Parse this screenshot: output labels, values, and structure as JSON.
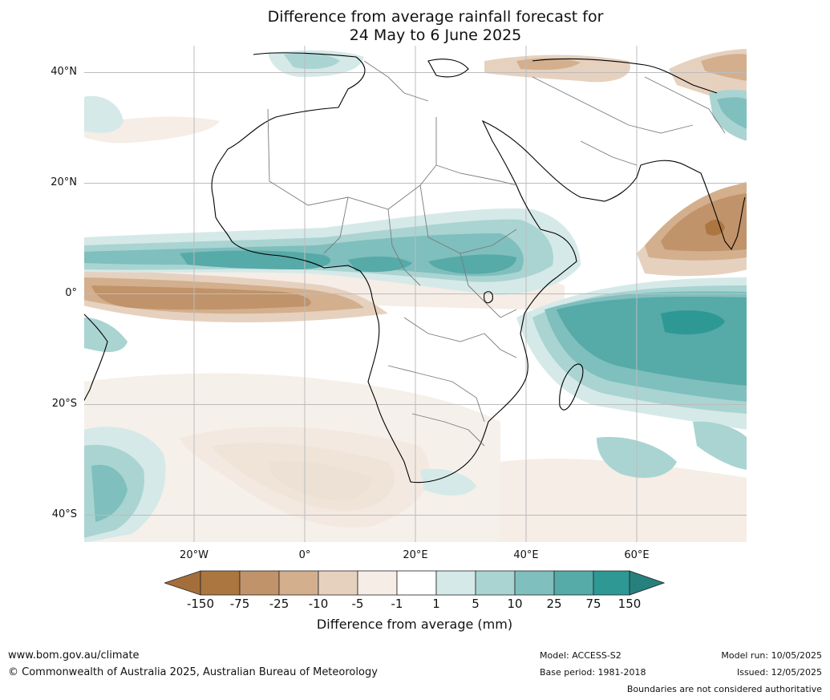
{
  "title": {
    "line1": "Difference from average rainfall forecast for",
    "line2": "24 May to 6 June 2025"
  },
  "map": {
    "lat_labels": [
      "40°N",
      "20°N",
      "0°",
      "20°S",
      "40°S"
    ],
    "lon_labels": [
      "20°W",
      "0°",
      "20°E",
      "40°E",
      "60°E"
    ],
    "lat_range": [
      -45,
      45
    ],
    "lon_range": [
      -40,
      80
    ],
    "gridlines": true
  },
  "legend": {
    "ticks": [
      "-150",
      "-75",
      "-25",
      "-10",
      "-5",
      "-1",
      "1",
      "5",
      "10",
      "25",
      "75",
      "150"
    ],
    "colors": [
      "#a36e3a",
      "#ab7640",
      "#c0936a",
      "#d3af8d",
      "#e6d1bf",
      "#f5ede6",
      "#ffffff",
      "#d5e9e8",
      "#a9d4d2",
      "#7fbfbd",
      "#56aaa8",
      "#2e9895",
      "#26807d"
    ],
    "label": "Difference from average (mm)"
  },
  "footer": {
    "website": "www.bom.gov.au/climate",
    "copyright": "© Commonwealth of Australia 2025, Australian Bureau of Meteorology",
    "model": "Model: ACCESS-S2",
    "base_period": "Base period: 1981-2018",
    "model_run": "Model run: 10/05/2025",
    "issued": "Issued: 12/05/2025",
    "boundaries_note": "Boundaries are not considered authoritative"
  }
}
